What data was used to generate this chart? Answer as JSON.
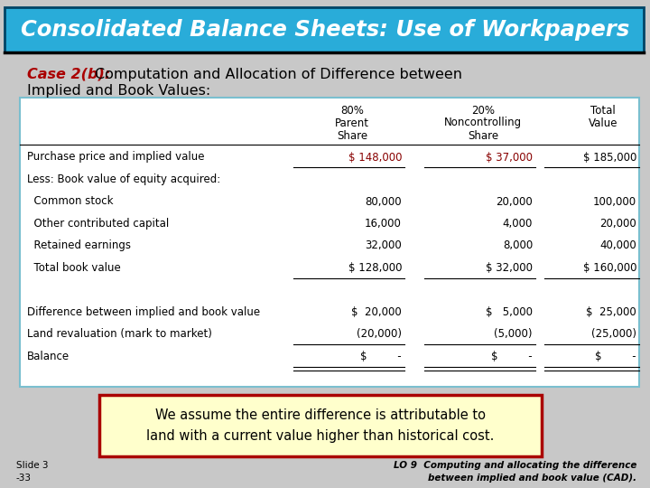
{
  "title": "Consolidated Balance Sheets: Use of Workpapers",
  "title_bg": "#29acd9",
  "title_color": "white",
  "case_label": "Case 2(b):",
  "case_label_color": "#aa0000",
  "case_text_color": "#000000",
  "col_headers": [
    [
      "80%",
      "Parent",
      "Share"
    ],
    [
      "20%",
      "Noncontrolling",
      "Share"
    ],
    [
      "Total",
      "Value",
      ""
    ]
  ],
  "table_border_color": "#7abfcf",
  "rows": [
    {
      "label": "Purchase price and implied value",
      "col1": "$ 148,000",
      "col2": "$ 37,000",
      "col3": "$ 185,000",
      "col1_color": "#880000",
      "col2_color": "#880000",
      "col3_color": "#000000",
      "underline": true,
      "double_underline": false,
      "gap_above": false
    },
    {
      "label": "Less: Book value of equity acquired:",
      "col1": "",
      "col2": "",
      "col3": "",
      "col1_color": "#000000",
      "col2_color": "#000000",
      "col3_color": "#000000",
      "underline": false,
      "double_underline": false,
      "gap_above": false
    },
    {
      "label": "  Common stock",
      "col1": "80,000",
      "col2": "20,000",
      "col3": "100,000",
      "col1_color": "#000000",
      "col2_color": "#000000",
      "col3_color": "#000000",
      "underline": false,
      "double_underline": false,
      "gap_above": false
    },
    {
      "label": "  Other contributed capital",
      "col1": "16,000",
      "col2": "4,000",
      "col3": "20,000",
      "col1_color": "#000000",
      "col2_color": "#000000",
      "col3_color": "#000000",
      "underline": false,
      "double_underline": false,
      "gap_above": false
    },
    {
      "label": "  Retained earnings",
      "col1": "32,000",
      "col2": "8,000",
      "col3": "40,000",
      "col1_color": "#000000",
      "col2_color": "#000000",
      "col3_color": "#000000",
      "underline": false,
      "double_underline": false,
      "gap_above": false
    },
    {
      "label": "  Total book value",
      "col1": "$ 128,000",
      "col2": "$ 32,000",
      "col3": "$ 160,000",
      "col1_color": "#000000",
      "col2_color": "#000000",
      "col3_color": "#000000",
      "underline": true,
      "double_underline": false,
      "gap_above": false
    },
    {
      "label": "",
      "col1": "",
      "col2": "",
      "col3": "",
      "col1_color": "#000000",
      "col2_color": "#000000",
      "col3_color": "#000000",
      "underline": false,
      "double_underline": false,
      "gap_above": false
    },
    {
      "label": "Difference between implied and book value",
      "col1": "$  20,000",
      "col2": "$   5,000",
      "col3": "$  25,000",
      "col1_color": "#000000",
      "col2_color": "#000000",
      "col3_color": "#000000",
      "underline": false,
      "double_underline": false,
      "gap_above": false
    },
    {
      "label": "Land revaluation (mark to market)",
      "col1": "(20,000)",
      "col2": "(5,000)",
      "col3": "(25,000)",
      "col1_color": "#000000",
      "col2_color": "#000000",
      "col3_color": "#000000",
      "underline": true,
      "double_underline": false,
      "gap_above": false
    },
    {
      "label": "Balance",
      "col1": "$         -",
      "col2": "$         -",
      "col3": "$         -",
      "col1_color": "#000000",
      "col2_color": "#000000",
      "col3_color": "#000000",
      "underline": true,
      "double_underline": true,
      "gap_above": false
    }
  ],
  "note_text": "We assume the entire difference is attributable to\nland with a current value higher than historical cost.",
  "note_bg": "#ffffcc",
  "note_border": "#aa0000",
  "footer_left": "Slide 3\n-33",
  "footer_right": "LO 9  Computing and allocating the difference\nbetween implied and book value (CAD).",
  "bg_color": "#c8c8c8"
}
